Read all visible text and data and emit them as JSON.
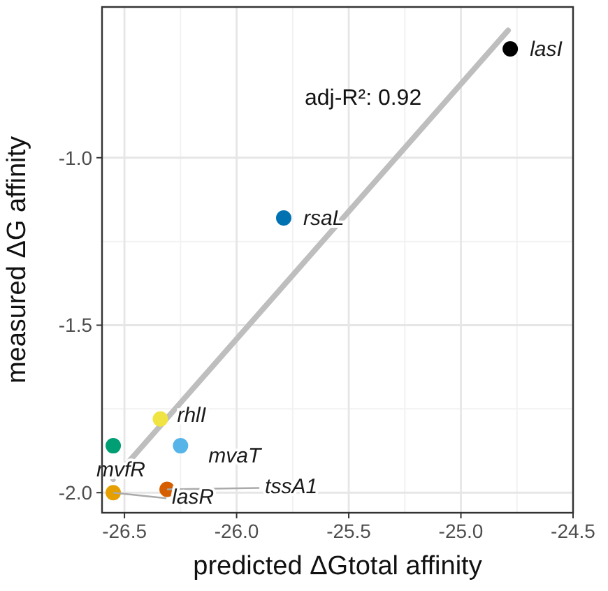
{
  "chart_data": {
    "type": "scatter",
    "xlabel": "predicted ΔGtotal affinity",
    "ylabel": "measured ΔG affinity",
    "xlim": [
      -26.6,
      -24.5
    ],
    "xticks": [
      -26.5,
      {
        "value": -26,
        "label": "-26.0"
      },
      -25.5,
      {
        "value": -25,
        "label": "-25.0"
      },
      -24.5
    ],
    "ylim": [
      -2.06,
      -0.55
    ],
    "yticks": [
      {
        "value": -2,
        "label": "-2.0"
      },
      -1.5,
      {
        "value": -1,
        "label": "-1.0"
      }
    ],
    "grid": true,
    "marker": "circle",
    "annotations": [
      "adj-R²: 0.92"
    ],
    "series": [
      {
        "name": "lasI",
        "color": "#000000",
        "x": [
          -24.78
        ],
        "values": [
          -0.675
        ]
      },
      {
        "name": "rsaL",
        "color": "#0072b2",
        "x": [
          -25.79
        ],
        "values": [
          -1.18
        ]
      },
      {
        "name": "rhlI",
        "color": "#f0e442",
        "x": [
          -26.34
        ],
        "values": [
          -1.78
        ]
      },
      {
        "name": "mvfR",
        "color": "#009e73",
        "x": [
          -26.55
        ],
        "values": [
          -1.86
        ]
      },
      {
        "name": "mvaT",
        "color": "#56b4e9",
        "x": [
          -26.25
        ],
        "values": [
          -1.86
        ]
      },
      {
        "name": "tssA1",
        "color": "#d55e00",
        "x": [
          -26.31
        ],
        "values": [
          -1.99
        ]
      },
      {
        "name": "lasR",
        "color": "#e69f00",
        "x": [
          -26.55
        ],
        "values": [
          -2.0
        ]
      },
      {
        "type": "line",
        "color": "#bebebe",
        "x": [
          -26.55,
          -24.79
        ],
        "values": [
          -1.96,
          -0.62
        ],
        "line_style": "solid",
        "marker": "none"
      }
    ]
  }
}
